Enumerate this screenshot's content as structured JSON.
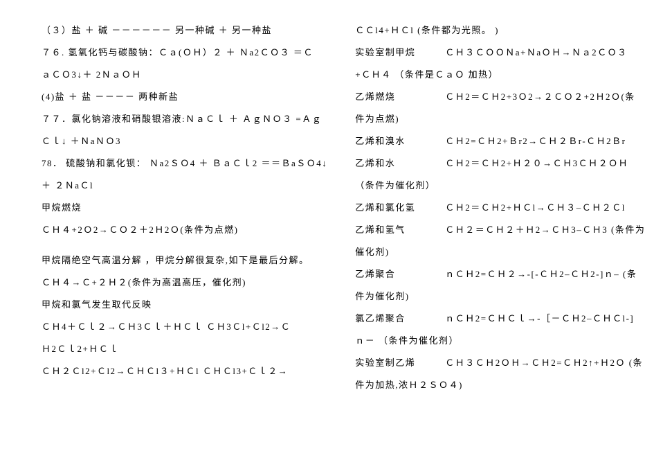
{
  "left": {
    "l1": "（３）盐 ＋ 碱  －－－－－－ 另一种碱 ＋ 另一种盐",
    "l2": "７６. 氢氧化钙与碳酸钠：Ｃａ(ＯＨ）２  ＋ Ｎa2ＣＯ３  ＝Ｃ",
    "l3": "ａＣＯ3↓＋  2ＮａＯＨ",
    "l4": "(4)盐  ＋ 盐 －－－－ 两种新盐",
    "l5": "７７．氯化钠溶液和硝酸银溶液:ＮａＣｌ  ＋  ＡｇＮＯ３  =Ａｇ",
    "l6": "Ｃｌ↓ ＋ＮaＮＯ3",
    "l7": "78． 硫酸钠和氯化钡： Ｎa2ＳＯ4  ＋  ＢａＣｌ2  ＝＝ＢaＳＯ4↓",
    "l8": "＋  ２ＮaＣl",
    "l9": "甲烷燃烧",
    "l10": "ＣＨ４+2Ｏ2→ＣＯ２＋2Ｈ2Ｏ(条件为点燃)",
    "l11": "甲烷隔绝空气高温分解 ，甲烷分解很复杂,如下是最后分解。",
    "l12": "ＣＨ４→Ｃ+２Ｈ２(条件为高温高压，催化剂)",
    "l13": "甲烷和氯气发生取代反映",
    "l14": "ＣＨ4＋Ｃｌ２→ＣＨ3Ｃｌ＋ＨＣｌ            ＣＨ3Ｃl+Ｃl2→Ｃ",
    "l15": "Ｈ2Ｃｌ2+ＨＣｌ",
    "l16": "ＣＨ２Ｃl2+Ｃl2→ＣＨＣl３+ＨＣl           ＣＨＣl3+Ｃｌ２→"
  },
  "right": {
    "l1": "ＣＣl4+ＨＣl (条件都为光照。  )",
    "l2a": "实验室制甲烷",
    "l2b": "ＣＨ３ＣＯＯＮa+ＮaＯＨ→Ｎａ2ＣＯ３",
    "l3": "+ＣＨ４ （条件是ＣａＯ  加热）",
    "l4a": "乙烯燃烧",
    "l4b": "ＣＨ2＝ＣＨ2+3Ｏ2→２ＣＯ２+2Ｈ2Ｏ(条",
    "l5": "件为点燃)",
    "l6a": "乙烯和溴水",
    "l6b": "ＣＨ2=ＣＨ2+Ｂr2→ＣＨ２Ｂr-ＣＨ2Ｂr",
    "l7a": "乙烯和水",
    "l7b": "ＣＨ2＝ＣＨ2+Ｈ２０→ＣＨ3ＣＨ２ＯＨ",
    "l8": " （条件为催化剂）",
    "l9a": "乙烯和氯化氢",
    "l9b": "ＣＨ2＝ＣＨ2+ＨＣl→ＣＨ３–ＣＨ２Ｃl",
    "l10a": "乙烯和氢气",
    "l10b": "ＣＨ２＝ＣＨ２＋Ｈ2→ＣＨ3–ＣＨ3 (条件为",
    "l11": "催化剂)",
    "l12a": "乙烯聚合",
    "l12b": "ｎＣＨ2=ＣＨ２→-[-ＣＨ2–ＣＨ2-]ｎ–  (条",
    "l13": "件为催化剂)",
    "l14a": "氯乙烯聚合",
    "l14b": "ｎＣＨ2=ＣＨＣｌ→-［－ＣＨ2–ＣＨＣl-]",
    "l15": "ｎ－  （条件为催化剂）",
    "l16a": "实验室制乙烯",
    "l16b": "ＣＨ３ＣＨ2ＯＨ→ＣＨ2=ＣＨ2↑+Ｈ2Ｏ (条",
    "l17": "件为加热,浓Ｈ２ＳＯ４)"
  }
}
